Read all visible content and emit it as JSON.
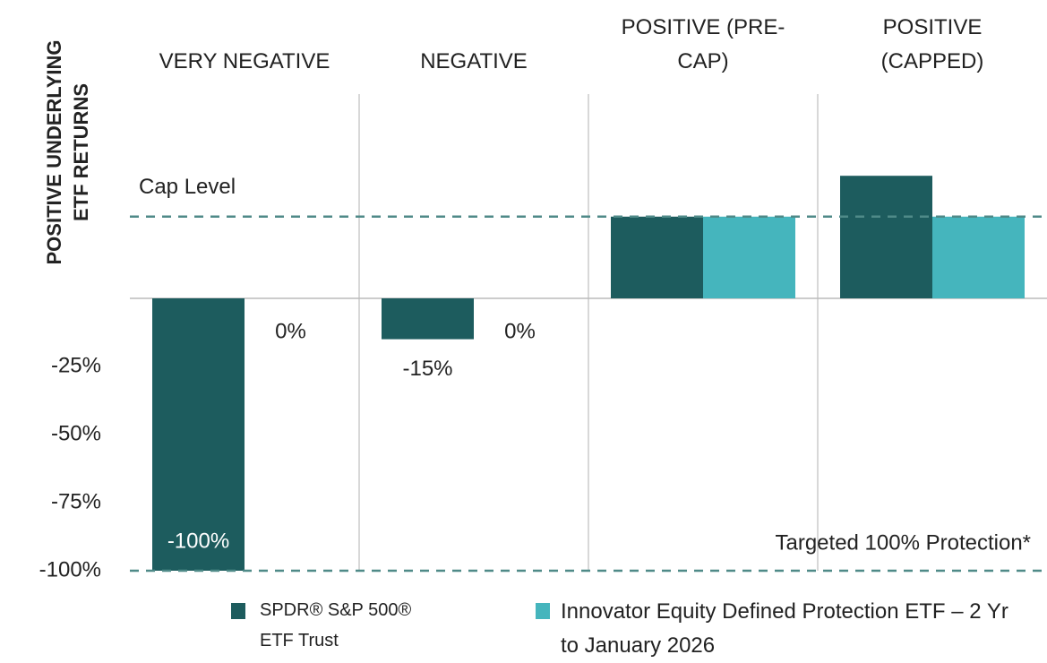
{
  "chart_data": {
    "type": "bar",
    "y_label": [
      "POSITIVE UNDERLYING",
      "ETF RETURNS"
    ],
    "categories": [
      "VERY NEGATIVE",
      "NEGATIVE",
      "POSITIVE (PRE-CAP)",
      "POSITIVE (CAPPED)"
    ],
    "series": [
      {
        "name": "SPDR® S&P 500® ETF Trust",
        "color": "#1d5c5e",
        "values": [
          -100,
          -15,
          30,
          45
        ],
        "value_labels": [
          "-100%",
          "-15%",
          null,
          null
        ]
      },
      {
        "name": "Innovator Equity Defined Protection ETF – 2 Yr to January 2026",
        "color": "#45b5bd",
        "values": [
          0,
          0,
          30,
          30
        ],
        "value_labels": [
          "0%",
          "0%",
          null,
          null
        ]
      }
    ],
    "ylim": [
      -100,
      75
    ],
    "yticks": [
      {
        "value": -25,
        "label": "-25%"
      },
      {
        "value": -50,
        "label": "-50%"
      },
      {
        "value": -75,
        "label": "-75%"
      },
      {
        "value": -100,
        "label": "-100%"
      }
    ],
    "annotations": [
      {
        "text": "Cap Level",
        "value": 30
      },
      {
        "text": "Targeted 100% Protection*",
        "value": -100
      }
    ]
  }
}
